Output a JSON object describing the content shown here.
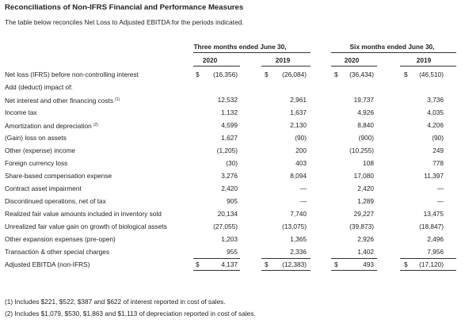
{
  "header": {
    "title": "Reconciliations of Non-IFRS Financial and Performance Measures",
    "subtitle": "The table below reconciles Net Loss to Adjusted EBITDA for the periods indicated."
  },
  "table": {
    "column_groups": [
      "Three months ended June 30,",
      "Six months ended June 30,"
    ],
    "years": [
      "2020",
      "2019",
      "2020",
      "2019"
    ],
    "rows": [
      {
        "label": "Net loss (IFRS) before non-controlling interest",
        "currency": "$",
        "values": [
          "(16,356)",
          "(26,084)",
          "(36,434)",
          "(46,510)"
        ]
      },
      {
        "label": "Add (deduct) impact of:"
      },
      {
        "label": "Net interest and other financing costs",
        "note": "(1)",
        "values": [
          "12,532",
          "2,961",
          "19,737",
          "3,736"
        ]
      },
      {
        "label": "Income tax",
        "values": [
          "1,132",
          "1,637",
          "4,926",
          "4,035"
        ]
      },
      {
        "label": "Amortization and depreciation",
        "note": "(2)",
        "values": [
          "4,599",
          "2,130",
          "8,840",
          "4,206"
        ]
      },
      {
        "label": "(Gain) loss on assets",
        "values": [
          "1,627",
          "(90)",
          "(900)",
          "(90)"
        ]
      },
      {
        "label": "Other (expense) income",
        "values": [
          "(1,205)",
          "200",
          "(10,255)",
          "249"
        ]
      },
      {
        "label": "Foreign currency loss",
        "values": [
          "(30)",
          "403",
          "108",
          "778"
        ]
      },
      {
        "label": "Share-based compensation expense",
        "values": [
          "3,276",
          "8,094",
          "17,080",
          "11,397"
        ]
      },
      {
        "label": "Contract asset impairment",
        "values": [
          "2,420",
          "—",
          "2,420",
          "—"
        ]
      },
      {
        "label": "Discontinued operations, net of tax",
        "values": [
          "905",
          "—",
          "1,289",
          "—"
        ]
      },
      {
        "label": "Realized fair value amounts included in inventory sold",
        "values": [
          "20,134",
          "7,740",
          "29,227",
          "13,475"
        ]
      },
      {
        "label": "Unrealized fair value gain on growth of biological assets",
        "values": [
          "(27,055)",
          "(13,075)",
          "(39,873)",
          "(18,847)"
        ]
      },
      {
        "label": "Other expansion expenses (pre-open)",
        "values": [
          "1,203",
          "1,365",
          "2,926",
          "2,496"
        ]
      },
      {
        "label": "Transaction & other special charges",
        "values": [
          "955",
          "2,336",
          "1,402",
          "7,956"
        ]
      },
      {
        "label": "Adjusted EBITDA (non-IFRS)",
        "currency": "$",
        "values": [
          "4,137",
          "(12,383)",
          "493",
          "(17,120)"
        ]
      }
    ]
  },
  "footnotes": [
    "(1) Includes $221, $522, $387 and $622 of interest reported in cost of sales.",
    "(2) Includes $1,079, $530, $1,863 and $1,113 of depreciation reported in cost of sales."
  ]
}
